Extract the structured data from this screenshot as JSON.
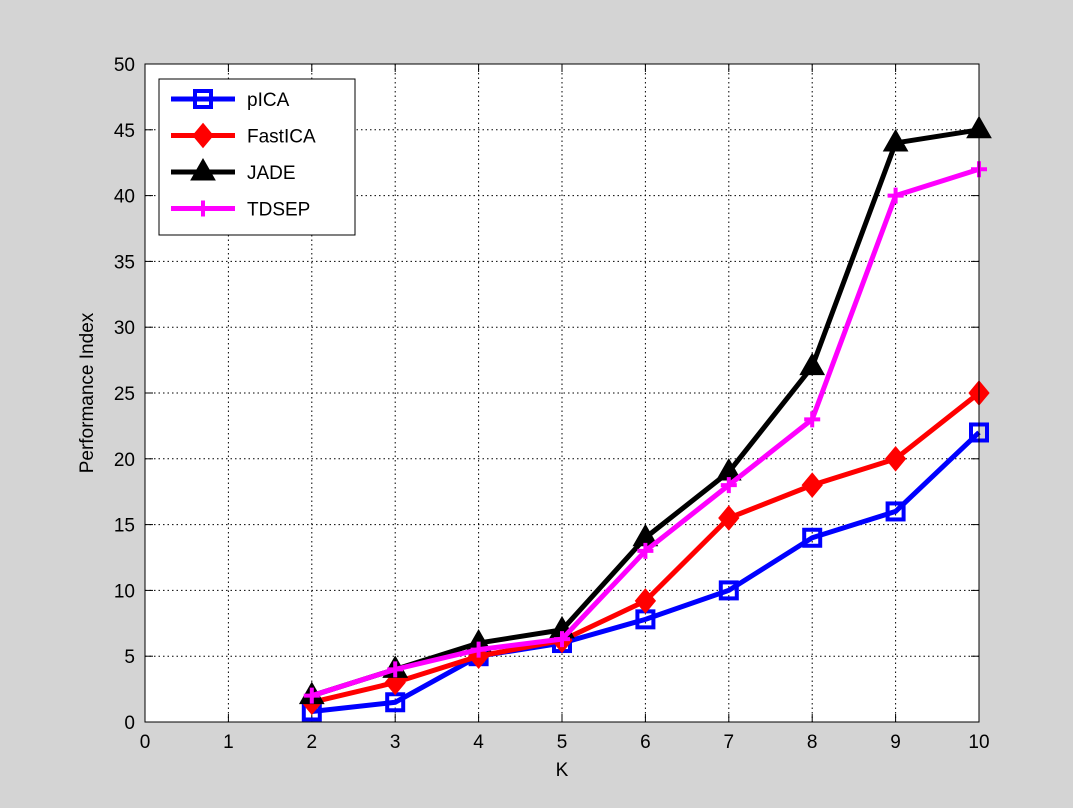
{
  "chart_data": {
    "type": "line",
    "title": "",
    "xlabel": "K",
    "ylabel": "Performance Index",
    "xlim": [
      0,
      10
    ],
    "ylim": [
      0,
      50
    ],
    "xticks": [
      0,
      1,
      2,
      3,
      4,
      5,
      6,
      7,
      8,
      9,
      10
    ],
    "yticks": [
      0,
      5,
      10,
      15,
      20,
      25,
      30,
      35,
      40,
      45,
      50
    ],
    "grid": true,
    "legend_position": "top-left",
    "x": [
      2,
      3,
      4,
      5,
      6,
      7,
      8,
      9,
      10
    ],
    "series": [
      {
        "name": "pICA",
        "color": "#0000ff",
        "marker": "square",
        "values": [
          0.8,
          1.5,
          5,
          6,
          7.8,
          10,
          14,
          16,
          22
        ]
      },
      {
        "name": "FastICA",
        "color": "#ff0000",
        "marker": "diamond",
        "values": [
          1.5,
          3,
          5,
          6.2,
          9.2,
          15.5,
          18,
          20,
          25
        ]
      },
      {
        "name": "JADE",
        "color": "#000000",
        "marker": "triangle",
        "values": [
          2,
          4,
          6,
          7,
          14,
          19,
          27,
          44,
          45
        ]
      },
      {
        "name": "TDSEP",
        "color": "#ff00ff",
        "marker": "plus",
        "values": [
          2,
          4,
          5.5,
          6.3,
          13,
          18,
          23,
          40,
          42
        ]
      }
    ]
  }
}
